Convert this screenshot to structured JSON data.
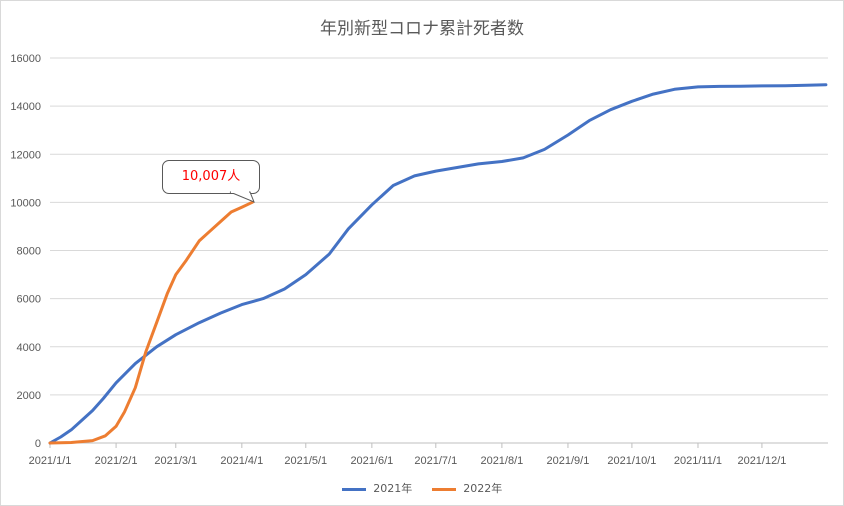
{
  "chart_data": {
    "type": "line",
    "title": "年別新型コロナ累計死者数",
    "xlabel": "",
    "ylabel": "",
    "x_tick_labels": [
      "2021/1/1",
      "2021/2/1",
      "2021/3/1",
      "2021/4/1",
      "2021/5/1",
      "2021/6/1",
      "2021/7/1",
      "2021/8/1",
      "2021/9/1",
      "2021/10/1",
      "2021/11/1",
      "2021/12/1"
    ],
    "y_ticks": [
      0,
      2000,
      4000,
      6000,
      8000,
      10000,
      12000,
      14000,
      16000
    ],
    "ylim": [
      0,
      16000
    ],
    "x_day_range": [
      0,
      365
    ],
    "grid": true,
    "legend_position": "bottom",
    "series": [
      {
        "name": "2021年",
        "color": "#4472c4",
        "x": [
          0,
          5,
          10,
          15,
          20,
          25,
          31,
          40,
          50,
          59,
          70,
          80,
          90,
          100,
          110,
          120,
          131,
          140,
          151,
          161,
          171,
          181,
          191,
          201,
          212,
          222,
          232,
          243,
          253,
          263,
          273,
          283,
          293,
          304,
          314,
          324,
          334,
          345,
          355,
          364
        ],
        "y": [
          0,
          250,
          550,
          950,
          1350,
          1850,
          2500,
          3300,
          4000,
          4500,
          5000,
          5400,
          5750,
          6000,
          6400,
          7000,
          7850,
          8900,
          9900,
          10700,
          11100,
          11300,
          11450,
          11600,
          11700,
          11850,
          12200,
          12800,
          13400,
          13850,
          14200,
          14500,
          14700,
          14800,
          14820,
          14830,
          14840,
          14850,
          14870,
          14890
        ]
      },
      {
        "name": "2022年",
        "color": "#ed7d31",
        "x": [
          0,
          10,
          20,
          26,
          31,
          35,
          40,
          45,
          50,
          55,
          59,
          64,
          70,
          75,
          80,
          85,
          90,
          95
        ],
        "y": [
          0,
          20,
          100,
          300,
          700,
          1300,
          2300,
          3800,
          5000,
          6200,
          7000,
          7600,
          8400,
          8800,
          9200,
          9600,
          9800,
          10007
        ]
      }
    ],
    "annotations": [
      {
        "text": "10,007人"
      }
    ]
  }
}
